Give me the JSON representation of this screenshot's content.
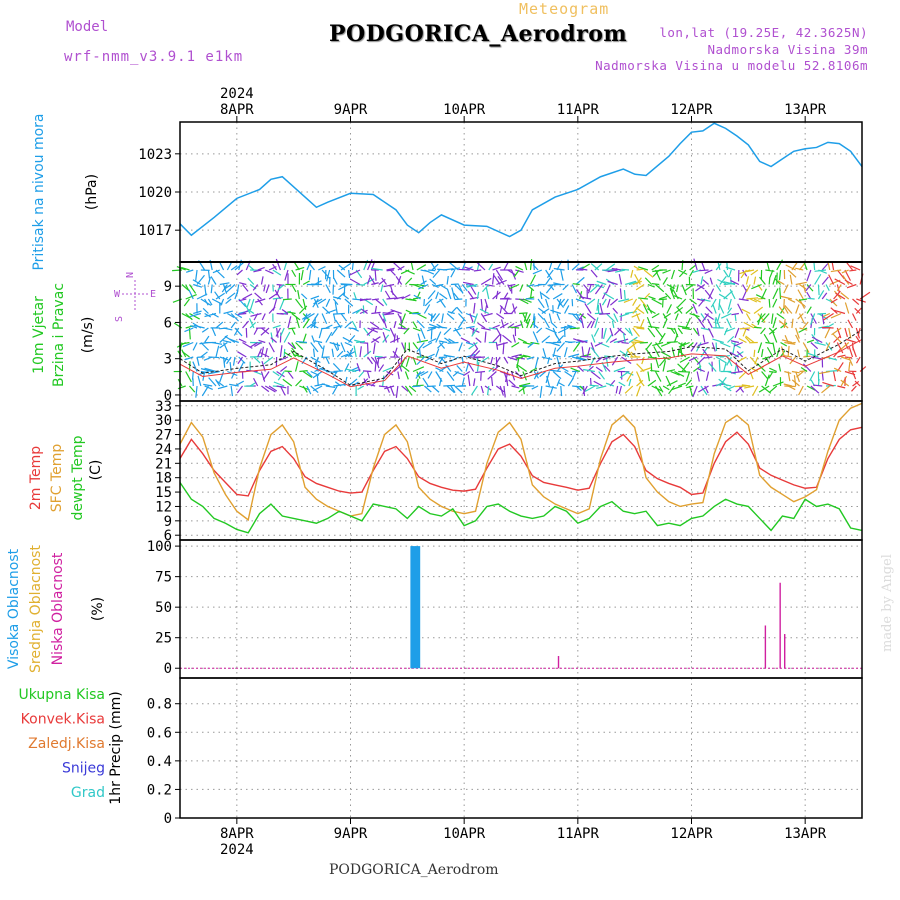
{
  "header": {
    "model_label": "Model",
    "model_name": "wrf-nmm_v3.9.1 e1km",
    "product": "Meteogram",
    "station": "PODGORICA_Aerodrom",
    "coords": "lon,lat (19.25E, 42.3625N)",
    "elevation": "Nadmorska Visina 39m",
    "model_elevation": "Nadmorska Visina u modelu 52.8106m"
  },
  "footer": {
    "station": "PODGORICA_Aerodrom",
    "credit": "made by Angel"
  },
  "colors": {
    "pressure": "#1e9ee8",
    "temp": "#e83a3a",
    "sfc_temp": "#e0a030",
    "dewpoint": "#22c822",
    "high_cloud": "#1e9ee8",
    "mid_cloud": "#e0b030",
    "low_cloud": "#d020a0",
    "grid": "#999999"
  },
  "time_axis": {
    "year": "2024",
    "days": [
      "8APR",
      "9APR",
      "10APR",
      "11APR",
      "12APR",
      "13APR"
    ]
  },
  "panels": {
    "pressure": {
      "label": "Pritisak na nivou mora",
      "unit": "(hPa)"
    },
    "wind": {
      "label1": "10m Vjetar",
      "label2": "Brzina i Pravac",
      "unit": "(m/s)",
      "compass": {
        "n": "N",
        "s": "S",
        "e": "E",
        "w": "W"
      }
    },
    "temp": {
      "label1": "2m Temp",
      "label2": "SFC Temp",
      "label3": "dewpt Temp",
      "unit": "(C)"
    },
    "cloud": {
      "label1": "Visoka Oblacnost",
      "label2": "Srednja Oblacnost",
      "label3": "Niska Oblacnost",
      "unit": "(%)"
    },
    "precip": {
      "label": "1hr Precip",
      "unit": "(mm)",
      "legend": [
        "Ukupna Kisa",
        "Konvek.Kisa",
        "Zaledj.Kisa",
        "Snijeg",
        "Grad"
      ]
    }
  },
  "chart_data": [
    {
      "type": "line",
      "name": "pressure",
      "ylabel": "Pritisak na nivou mora (hPa)",
      "yticks": [
        1017,
        1020,
        1023
      ],
      "ylim": [
        1014.5,
        1025.5
      ],
      "x_days": [
        7.5,
        7.6,
        7.8,
        8.0,
        8.2,
        8.3,
        8.4,
        8.6,
        8.7,
        8.8,
        9.0,
        9.2,
        9.4,
        9.5,
        9.6,
        9.7,
        9.8,
        10.0,
        10.2,
        10.4,
        10.5,
        10.6,
        10.8,
        11.0,
        11.2,
        11.4,
        11.5,
        11.6,
        11.8,
        11.9,
        12.0,
        12.1,
        12.2,
        12.3,
        12.4,
        12.5,
        12.6,
        12.7,
        12.8,
        12.9,
        13.0,
        13.1,
        13.2,
        13.3,
        13.4,
        13.5
      ],
      "values": [
        1017.5,
        1016.6,
        1018.0,
        1019.5,
        1020.2,
        1021.0,
        1021.2,
        1019.6,
        1018.8,
        1019.2,
        1019.9,
        1019.8,
        1018.6,
        1017.4,
        1016.8,
        1017.6,
        1018.2,
        1017.4,
        1017.3,
        1016.5,
        1017.0,
        1018.6,
        1019.6,
        1020.2,
        1021.2,
        1021.8,
        1021.4,
        1021.3,
        1022.8,
        1023.8,
        1024.7,
        1024.8,
        1025.4,
        1025.0,
        1024.4,
        1023.7,
        1022.4,
        1022.0,
        1022.6,
        1023.2,
        1023.4,
        1023.5,
        1023.9,
        1023.8,
        1023.2,
        1022.0
      ]
    },
    {
      "type": "line",
      "name": "wind_speed",
      "ylabel": "10m Vjetar Brzina i Pravac (m/s)",
      "yticks": [
        0,
        3,
        6,
        9
      ],
      "ylim": [
        -0.5,
        11
      ],
      "x_days": [
        7.5,
        7.7,
        8.0,
        8.3,
        8.5,
        8.8,
        9.0,
        9.3,
        9.5,
        9.8,
        10.0,
        10.3,
        10.5,
        10.8,
        11.0,
        11.3,
        11.5,
        11.8,
        12.0,
        12.3,
        12.5,
        12.8,
        13.0,
        13.3,
        13.5
      ],
      "values": [
        3.0,
        1.8,
        2.2,
        2.5,
        3.6,
        2.0,
        0.8,
        1.4,
        3.8,
        2.6,
        3.2,
        2.4,
        1.6,
        2.6,
        2.8,
        3.2,
        3.4,
        3.6,
        4.0,
        3.8,
        2.0,
        3.8,
        2.8,
        4.2,
        5.4
      ]
    },
    {
      "type": "line",
      "name": "temperature",
      "ylabel": "2m Temp / SFC Temp / dewpt Temp (C)",
      "yticks": [
        6,
        9,
        12,
        15,
        18,
        21,
        24,
        27,
        30,
        33
      ],
      "ylim": [
        5,
        34
      ],
      "x_days": [
        7.5,
        7.6,
        7.7,
        7.8,
        7.9,
        8.0,
        8.1,
        8.2,
        8.3,
        8.4,
        8.5,
        8.6,
        8.7,
        8.8,
        8.9,
        9.0,
        9.1,
        9.2,
        9.3,
        9.4,
        9.5,
        9.6,
        9.7,
        9.8,
        9.9,
        10.0,
        10.1,
        10.2,
        10.3,
        10.4,
        10.5,
        10.6,
        10.7,
        10.8,
        10.9,
        11.0,
        11.1,
        11.2,
        11.3,
        11.4,
        11.5,
        11.6,
        11.7,
        11.8,
        11.9,
        12.0,
        12.1,
        12.2,
        12.3,
        12.4,
        12.5,
        12.6,
        12.7,
        12.8,
        12.9,
        13.0,
        13.1,
        13.2,
        13.3,
        13.4,
        13.5
      ],
      "series": [
        {
          "name": "2m Temp",
          "values": [
            22.0,
            26.0,
            23.0,
            19.5,
            17.0,
            14.5,
            14.2,
            19.5,
            23.5,
            24.5,
            22.0,
            18.2,
            16.8,
            16.0,
            15.2,
            14.8,
            15.0,
            19.5,
            23.5,
            24.5,
            22.0,
            18.2,
            16.8,
            16.0,
            15.4,
            15.2,
            15.6,
            20.0,
            24.0,
            25.0,
            22.5,
            18.4,
            17.0,
            16.5,
            16.0,
            15.4,
            15.8,
            21.0,
            25.5,
            27.0,
            24.5,
            19.5,
            17.8,
            16.8,
            16.0,
            14.5,
            14.8,
            21.0,
            25.5,
            27.5,
            25.0,
            20.0,
            18.5,
            17.5,
            16.5,
            15.8,
            16.0,
            22.0,
            26.0,
            28.0,
            28.5
          ]
        },
        {
          "name": "SFC Temp",
          "values": [
            25.0,
            29.5,
            26.5,
            19.0,
            14.5,
            11.0,
            9.2,
            20.0,
            27.0,
            29.0,
            25.5,
            16.0,
            13.5,
            12.0,
            11.0,
            10.0,
            10.5,
            20.0,
            27.0,
            29.0,
            25.5,
            16.0,
            13.5,
            12.0,
            11.0,
            10.5,
            11.0,
            21.0,
            27.5,
            29.5,
            26.0,
            16.5,
            14.0,
            12.5,
            11.5,
            10.5,
            11.5,
            22.0,
            29.0,
            31.0,
            28.5,
            18.0,
            15.0,
            13.0,
            12.0,
            12.5,
            12.8,
            23.0,
            29.5,
            31.0,
            29.0,
            18.5,
            16.0,
            14.5,
            13.0,
            14.0,
            15.5,
            23.5,
            30.0,
            32.5,
            33.5
          ]
        },
        {
          "name": "dewpt Temp",
          "values": [
            17.0,
            13.5,
            12.0,
            9.5,
            8.5,
            7.2,
            6.5,
            10.5,
            12.5,
            10.0,
            9.5,
            9.0,
            8.5,
            9.5,
            11.0,
            10.0,
            9.0,
            12.5,
            12.0,
            11.5,
            9.5,
            12.0,
            10.5,
            10.0,
            11.5,
            8.0,
            9.0,
            12.0,
            12.5,
            11.0,
            10.0,
            9.5,
            10.0,
            12.0,
            11.0,
            8.5,
            9.5,
            12.0,
            13.0,
            11.0,
            10.5,
            11.0,
            8.0,
            8.5,
            8.0,
            9.5,
            10.0,
            12.0,
            13.5,
            12.5,
            12.0,
            9.5,
            7.0,
            10.0,
            9.5,
            13.5,
            12.0,
            12.5,
            11.5,
            7.5,
            7.0
          ]
        }
      ]
    },
    {
      "type": "bar",
      "name": "cloud_cover",
      "ylabel": "Oblacnost (%)",
      "yticks": [
        0,
        25,
        50,
        75,
        100
      ],
      "ylim": [
        -8,
        105
      ],
      "series": [
        {
          "name": "Visoka Oblacnost",
          "x_days": [
            9.54,
            9.56,
            9.58,
            9.6
          ],
          "values": [
            100,
            100,
            100,
            100
          ]
        },
        {
          "name": "Srednja Oblacnost",
          "x_days": [],
          "values": []
        },
        {
          "name": "Niska Oblacnost",
          "x_days": [
            10.83,
            12.65,
            12.78,
            12.82
          ],
          "values": [
            10,
            35,
            70,
            28
          ]
        }
      ]
    },
    {
      "type": "bar",
      "name": "precipitation",
      "ylabel": "1hr Precip (mm)",
      "yticks": [
        0,
        0.2,
        0.4,
        0.6,
        0.8
      ],
      "ylim": [
        0,
        0.98
      ],
      "series": [
        {
          "name": "Ukupna Kisa",
          "values": []
        },
        {
          "name": "Konvek.Kisa",
          "values": []
        },
        {
          "name": "Zaledj.Kisa",
          "values": []
        },
        {
          "name": "Snijeg",
          "values": []
        },
        {
          "name": "Grad",
          "values": []
        }
      ]
    }
  ]
}
